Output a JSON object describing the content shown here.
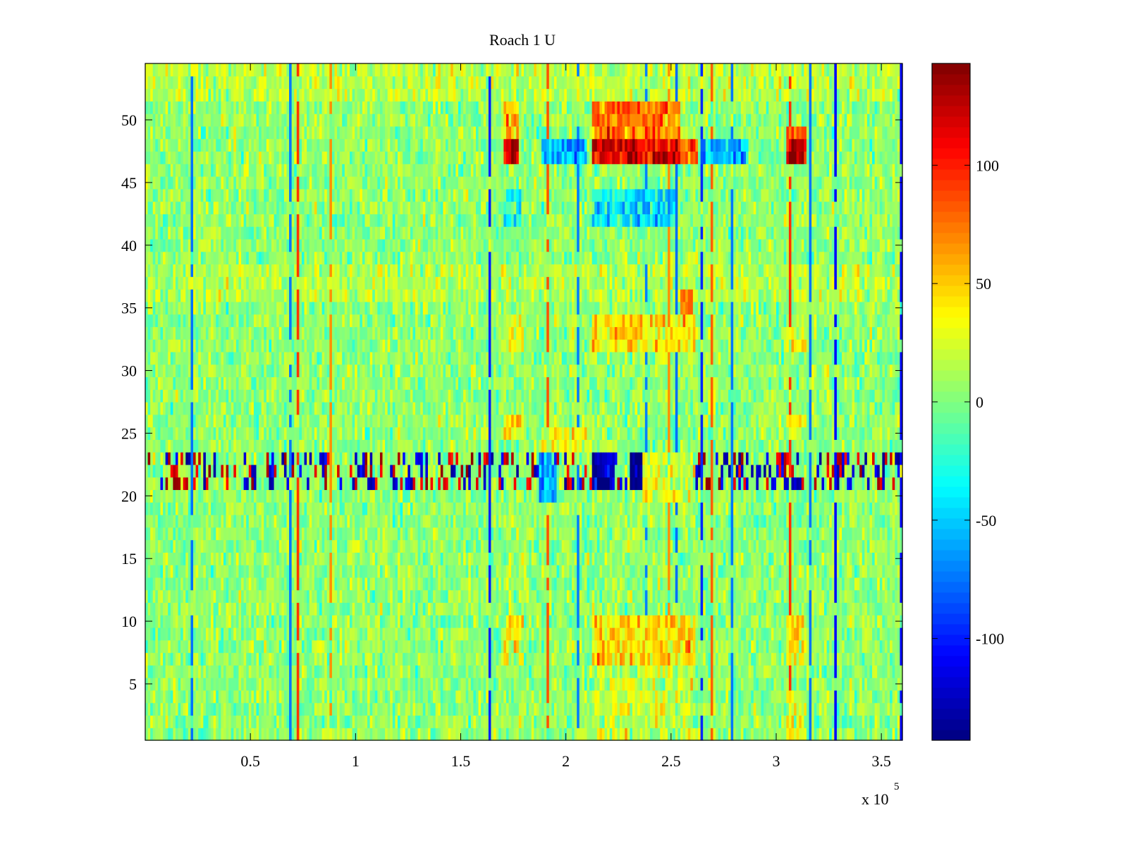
{
  "chart_data": {
    "type": "heatmap",
    "title": "Roach 1 U",
    "xlabel": "",
    "ylabel": "",
    "x_range": [
      0,
      360000
    ],
    "y_range": [
      0.5,
      54.5
    ],
    "rows": 54,
    "x_ticks": [
      50000,
      100000,
      150000,
      200000,
      250000,
      300000,
      350000
    ],
    "x_tick_labels": [
      "0.5",
      "1",
      "1.5",
      "2",
      "2.5",
      "3",
      "3.5"
    ],
    "x_exponent_prefix": "x 10",
    "x_exponent_power": "5",
    "y_ticks": [
      5,
      10,
      15,
      20,
      25,
      30,
      35,
      40,
      45,
      50
    ],
    "y_tick_labels": [
      "5",
      "10",
      "15",
      "20",
      "25",
      "30",
      "35",
      "40",
      "45",
      "50"
    ],
    "colorbar": {
      "colormap": "jet",
      "range": [
        -143,
        143
      ],
      "ticks": [
        100,
        50,
        0,
        -50,
        -100
      ],
      "tick_labels": [
        "100",
        "50",
        "0",
        "-50",
        "-100"
      ]
    },
    "base_level": 5,
    "features": [
      {
        "rows": [
          47,
          49
        ],
        "x": [
          170000,
          178000
        ],
        "value": 90
      },
      {
        "rows": [
          47,
          48
        ],
        "x": [
          171000,
          177000
        ],
        "value": 125
      },
      {
        "rows": [
          49,
          51
        ],
        "x": [
          170000,
          178000
        ],
        "value": 55
      },
      {
        "rows": [
          47,
          48
        ],
        "x": [
          188000,
          210000
        ],
        "value": -55
      },
      {
        "rows": [
          47,
          51
        ],
        "x": [
          213000,
          254000
        ],
        "value": 75
      },
      {
        "rows": [
          47,
          48
        ],
        "x": [
          213000,
          254000
        ],
        "value": 115
      },
      {
        "rows": [
          47,
          48
        ],
        "x": [
          255000,
          263000
        ],
        "value": 85
      },
      {
        "rows": [
          47,
          48
        ],
        "x": [
          264000,
          287000
        ],
        "value": -55
      },
      {
        "rows": [
          47,
          49
        ],
        "x": [
          305000,
          314000
        ],
        "value": 90
      },
      {
        "rows": [
          47,
          48
        ],
        "x": [
          306000,
          313000
        ],
        "value": 125
      },
      {
        "rows": [
          42,
          44
        ],
        "x": [
          170000,
          179000
        ],
        "value": -30
      },
      {
        "rows": [
          42,
          44
        ],
        "x": [
          213000,
          252000
        ],
        "value": -40
      },
      {
        "rows": [
          32,
          34
        ],
        "x": [
          170000,
          180000
        ],
        "value": 30
      },
      {
        "rows": [
          32,
          34
        ],
        "x": [
          213000,
          262000
        ],
        "value": 40
      },
      {
        "rows": [
          32,
          33
        ],
        "x": [
          305000,
          314000
        ],
        "value": 35
      },
      {
        "rows": [
          35,
          36
        ],
        "x": [
          254000,
          260000
        ],
        "value": 65
      },
      {
        "rows": [
          25,
          26
        ],
        "x": [
          170000,
          180000
        ],
        "value": 35
      },
      {
        "rows": [
          24,
          25
        ],
        "x": [
          188000,
          210000
        ],
        "value": 30
      },
      {
        "rows": [
          25,
          26
        ],
        "x": [
          305000,
          314000
        ],
        "value": 30
      },
      {
        "rows": [
          21,
          23
        ],
        "x": [
          213000,
          223000
        ],
        "value": -130
      },
      {
        "rows": [
          21,
          23
        ],
        "x": [
          230000,
          237000
        ],
        "value": -143
      },
      {
        "rows": [
          20,
          23
        ],
        "x": [
          237000,
          262000
        ],
        "value": 25
      },
      {
        "rows": [
          20,
          23
        ],
        "x": [
          187000,
          196000
        ],
        "value": -60
      },
      {
        "rows": [
          7,
          10
        ],
        "x": [
          170000,
          180000
        ],
        "value": 30
      },
      {
        "rows": [
          7,
          10
        ],
        "x": [
          213000,
          262000
        ],
        "value": 45
      },
      {
        "rows": [
          7,
          10
        ],
        "x": [
          305000,
          314000
        ],
        "value": 35
      },
      {
        "rows": [
          1,
          6
        ],
        "x": [
          213000,
          262000
        ],
        "value": 20
      },
      {
        "rows": [
          1,
          4
        ],
        "x": [
          305000,
          314000
        ],
        "value": 25
      }
    ]
  }
}
